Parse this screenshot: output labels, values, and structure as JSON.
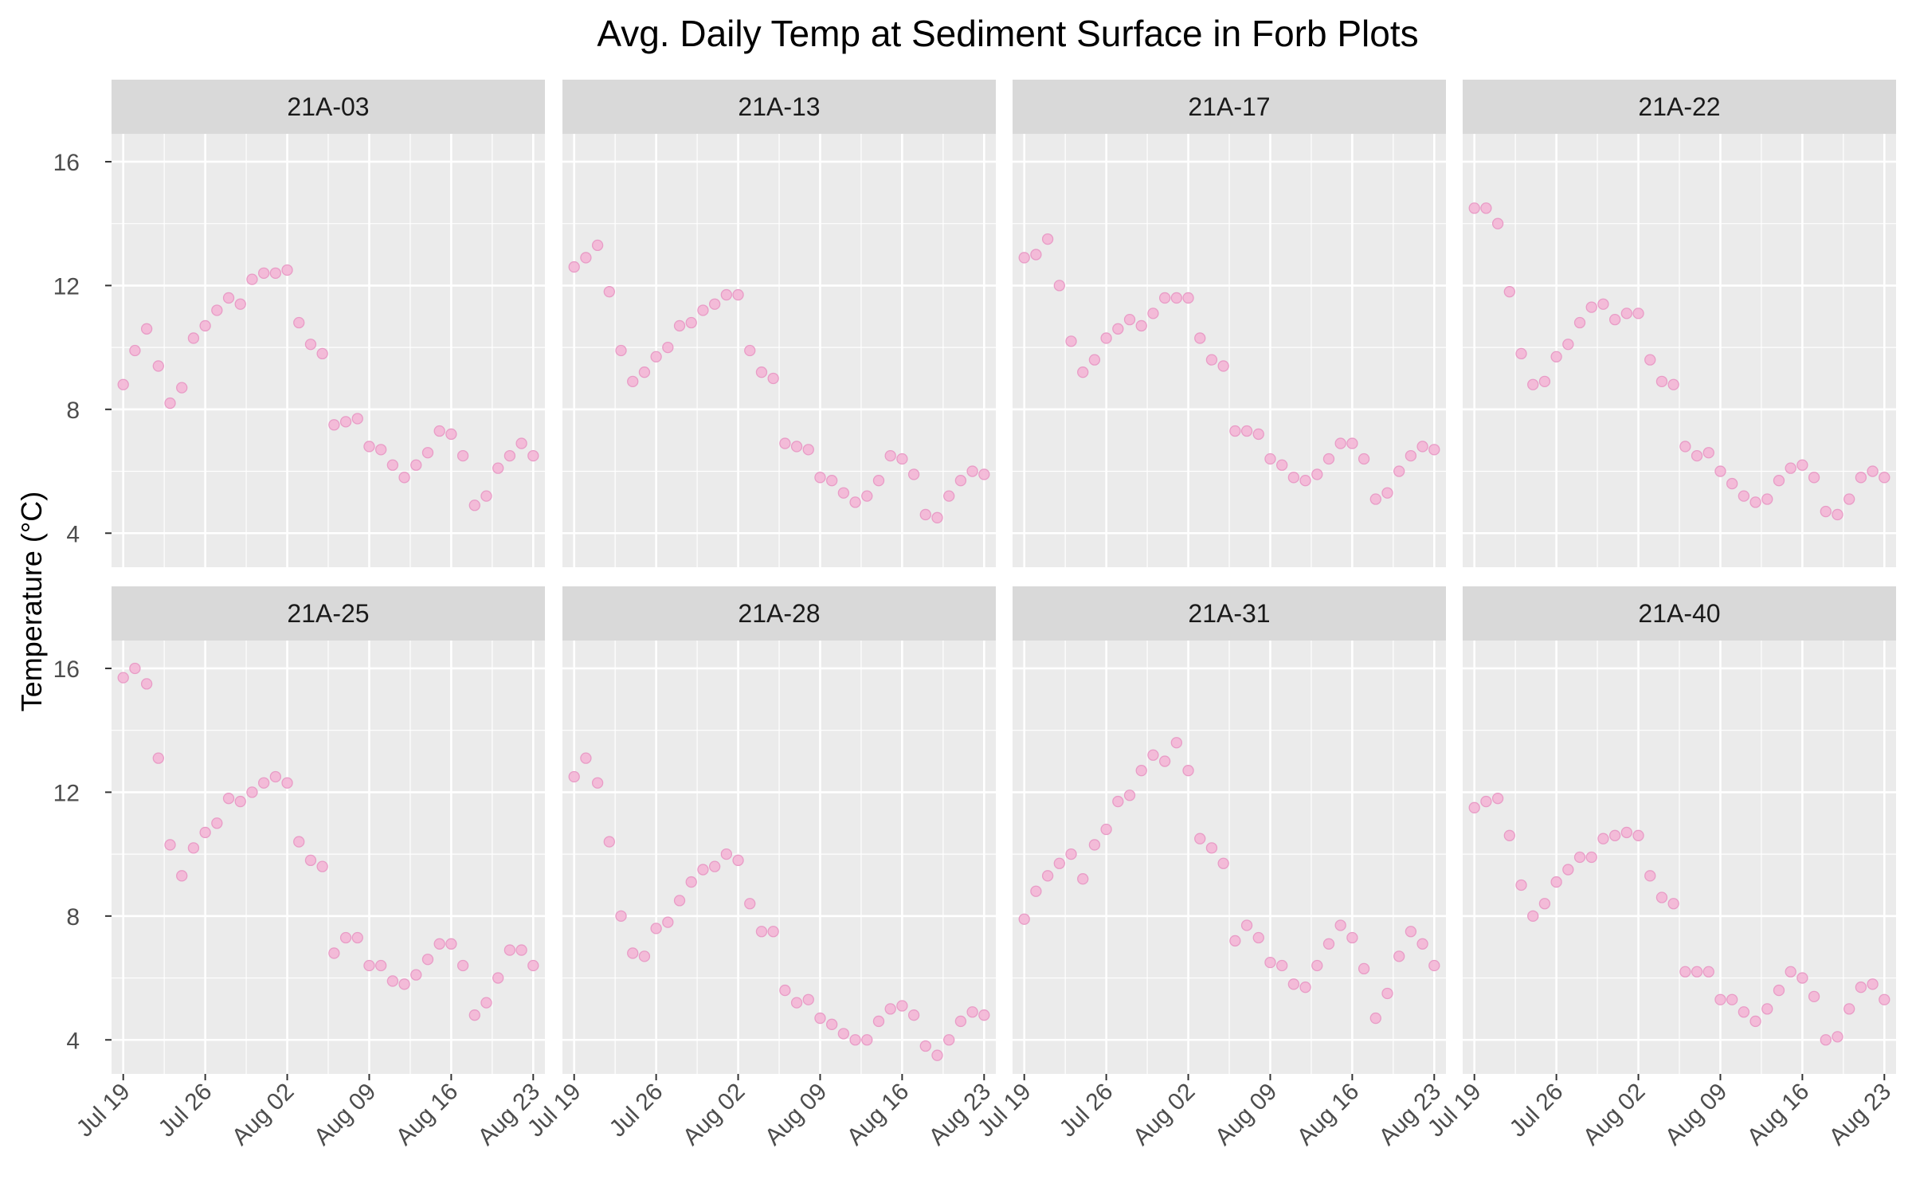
{
  "chart_data": {
    "type": "scatter",
    "title": "Avg. Daily Temp at Sediment Surface in Forb Plots",
    "xlabel": "",
    "ylabel": "Temperature (°C)",
    "x_tick_labels": [
      "Jul 19",
      "Jul 26",
      "Aug 02",
      "Aug 09",
      "Aug 16",
      "Aug 23"
    ],
    "y_tick_labels": [
      "4",
      "8",
      "12",
      "16"
    ],
    "y_ticks": [
      4,
      8,
      12,
      16
    ],
    "ylim": [
      2.9,
      16.9
    ],
    "xlim": [
      "2021-07-18",
      "2021-08-24"
    ],
    "start_date": "2021-07-19",
    "grid": true,
    "facet_layout": "2 rows x 4 columns",
    "point_color": "#f4b6d6",
    "point_stroke": "#e89cc6",
    "panel_background": "#ebebeb",
    "strip_background": "#d9d9d9",
    "panels": [
      {
        "name": "21A-03",
        "values": [
          8.8,
          9.9,
          10.6,
          9.4,
          8.2,
          8.7,
          10.3,
          10.7,
          11.2,
          11.6,
          11.4,
          12.2,
          12.4,
          12.4,
          12.5,
          10.8,
          10.1,
          9.8,
          7.5,
          7.6,
          7.7,
          6.8,
          6.7,
          6.2,
          5.8,
          6.2,
          6.6,
          7.3,
          7.2,
          6.5,
          4.9,
          5.2,
          6.1,
          6.5,
          6.9,
          6.5
        ]
      },
      {
        "name": "21A-13",
        "values": [
          12.6,
          12.9,
          13.3,
          11.8,
          9.9,
          8.9,
          9.2,
          9.7,
          10.0,
          10.7,
          10.8,
          11.2,
          11.4,
          11.7,
          11.7,
          9.9,
          9.2,
          9.0,
          6.9,
          6.8,
          6.7,
          5.8,
          5.7,
          5.3,
          5.0,
          5.2,
          5.7,
          6.5,
          6.4,
          5.9,
          4.6,
          4.5,
          5.2,
          5.7,
          6.0,
          5.9
        ]
      },
      {
        "name": "21A-17",
        "values": [
          12.9,
          13.0,
          13.5,
          12.0,
          10.2,
          9.2,
          9.6,
          10.3,
          10.6,
          10.9,
          10.7,
          11.1,
          11.6,
          11.6,
          11.6,
          10.3,
          9.6,
          9.4,
          7.3,
          7.3,
          7.2,
          6.4,
          6.2,
          5.8,
          5.7,
          5.9,
          6.4,
          6.9,
          6.9,
          6.4,
          5.1,
          5.3,
          6.0,
          6.5,
          6.8,
          6.7
        ]
      },
      {
        "name": "21A-22",
        "values": [
          14.5,
          14.5,
          14.0,
          11.8,
          9.8,
          8.8,
          8.9,
          9.7,
          10.1,
          10.8,
          11.3,
          11.4,
          10.9,
          11.1,
          11.1,
          9.6,
          8.9,
          8.8,
          6.8,
          6.5,
          6.6,
          6.0,
          5.6,
          5.2,
          5.0,
          5.1,
          5.7,
          6.1,
          6.2,
          5.8,
          4.7,
          4.6,
          5.1,
          5.8,
          6.0,
          5.8
        ]
      },
      {
        "name": "21A-25",
        "values": [
          15.7,
          16.0,
          15.5,
          13.1,
          10.3,
          9.3,
          10.2,
          10.7,
          11.0,
          11.8,
          11.7,
          12.0,
          12.3,
          12.5,
          12.3,
          10.4,
          9.8,
          9.6,
          6.8,
          7.3,
          7.3,
          6.4,
          6.4,
          5.9,
          5.8,
          6.1,
          6.6,
          7.1,
          7.1,
          6.4,
          4.8,
          5.2,
          6.0,
          6.9,
          6.9,
          6.4
        ]
      },
      {
        "name": "21A-28",
        "values": [
          12.5,
          13.1,
          12.3,
          10.4,
          8.0,
          6.8,
          6.7,
          7.6,
          7.8,
          8.5,
          9.1,
          9.5,
          9.6,
          10.0,
          9.8,
          8.4,
          7.5,
          7.5,
          5.6,
          5.2,
          5.3,
          4.7,
          4.5,
          4.2,
          4.0,
          4.0,
          4.6,
          5.0,
          5.1,
          4.8,
          3.8,
          3.5,
          4.0,
          4.6,
          4.9,
          4.8
        ]
      },
      {
        "name": "21A-31",
        "values": [
          7.9,
          8.8,
          9.3,
          9.7,
          10.0,
          9.2,
          10.3,
          10.8,
          11.7,
          11.9,
          12.7,
          13.2,
          13.0,
          13.6,
          12.7,
          10.5,
          10.2,
          9.7,
          7.2,
          7.7,
          7.3,
          6.5,
          6.4,
          5.8,
          5.7,
          6.4,
          7.1,
          7.7,
          7.3,
          6.3,
          4.7,
          5.5,
          6.7,
          7.5,
          7.1,
          6.4
        ]
      },
      {
        "name": "21A-40",
        "values": [
          11.5,
          11.7,
          11.8,
          10.6,
          9.0,
          8.0,
          8.4,
          9.1,
          9.5,
          9.9,
          9.9,
          10.5,
          10.6,
          10.7,
          10.6,
          9.3,
          8.6,
          8.4,
          6.2,
          6.2,
          6.2,
          5.3,
          5.3,
          4.9,
          4.6,
          5.0,
          5.6,
          6.2,
          6.0,
          5.4,
          4.0,
          4.1,
          5.0,
          5.7,
          5.8,
          5.3
        ]
      }
    ]
  }
}
